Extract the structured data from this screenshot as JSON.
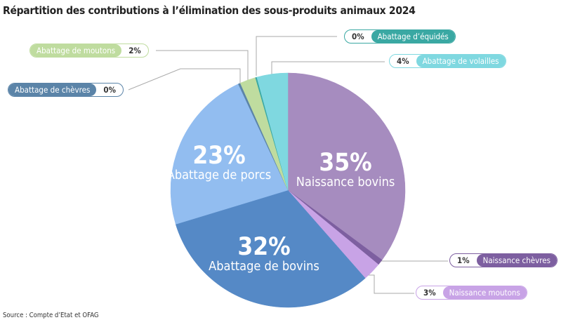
{
  "chart_data": {
    "type": "pie",
    "title": "Répartition des contributions à l’élimination des sous-produits animaux 2024",
    "source": "Source : Compte d’Etat et OFAG",
    "slices": [
      {
        "name": "Naissance bovins",
        "label": "35%",
        "value": 35.4,
        "color": "#a68cbf"
      },
      {
        "name": "Naissance chèvres",
        "label": "1%",
        "value": 0.8,
        "color": "#7d5fa0"
      },
      {
        "name": "Naissance moutons",
        "label": "3%",
        "value": 2.6,
        "color": "#c8a3e6"
      },
      {
        "name": "Abattage de bovins",
        "label": "32%",
        "value": 32.0,
        "color": "#5589c6"
      },
      {
        "name": "Abattage de porcs",
        "label": "23%",
        "value": 22.9,
        "color": "#92bdf0"
      },
      {
        "name": "Abattage de chèvres",
        "label": "0%",
        "value": 0.3,
        "color": "#5b84a8"
      },
      {
        "name": "Abattage de moutons",
        "label": "2%",
        "value": 2.2,
        "color": "#bfdc9f"
      },
      {
        "name": "Abattage d’équidés",
        "label": "0%",
        "value": 0.2,
        "color": "#3aa8a3"
      },
      {
        "name": "Abattage de volailles",
        "label": "4%",
        "value": 4.3,
        "color": "#7fd8e0"
      }
    ]
  }
}
